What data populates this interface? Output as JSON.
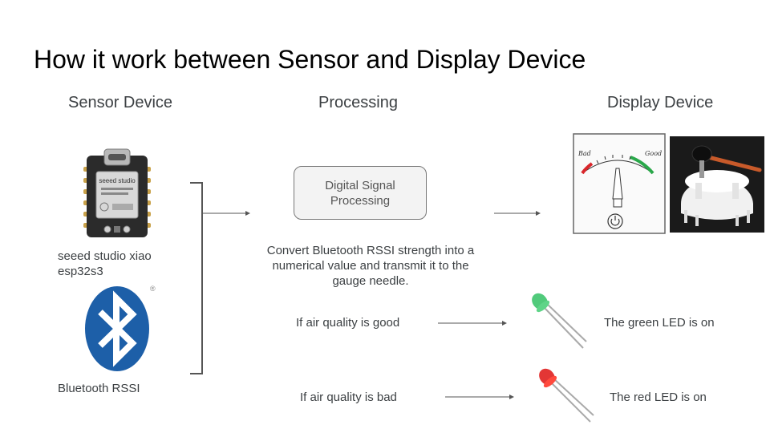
{
  "title": "How it work between Sensor and Display Device",
  "columns": {
    "sensor": "Sensor Device",
    "processing": "Processing",
    "display": "Display Device"
  },
  "sensor": {
    "board_label": "seeed studio xiao esp32s3",
    "board_silkscreen": "seeed studio",
    "bluetooth_label": "Bluetooth RSSI",
    "registered_mark": "®"
  },
  "processing": {
    "box_label": "Digital Signal Processing",
    "description": "Convert Bluetooth RSSI strength into a numerical value and transmit it to the gauge needle."
  },
  "display": {
    "gauge_bad": "Bad",
    "gauge_good": "Good"
  },
  "rules": [
    {
      "condition": "If air quality is good",
      "result": "The green LED is on",
      "led_color": "#3ec46d"
    },
    {
      "condition": "If air quality is bad",
      "result": "The red LED is on",
      "led_color": "#e0201f"
    }
  ],
  "colors": {
    "gauge_red": "#d9262b",
    "gauge_green": "#2aa84a",
    "bluetooth_blue": "#1d5fa8",
    "board_dark": "#2b2b2b",
    "motor_white": "#f1f1f1"
  }
}
